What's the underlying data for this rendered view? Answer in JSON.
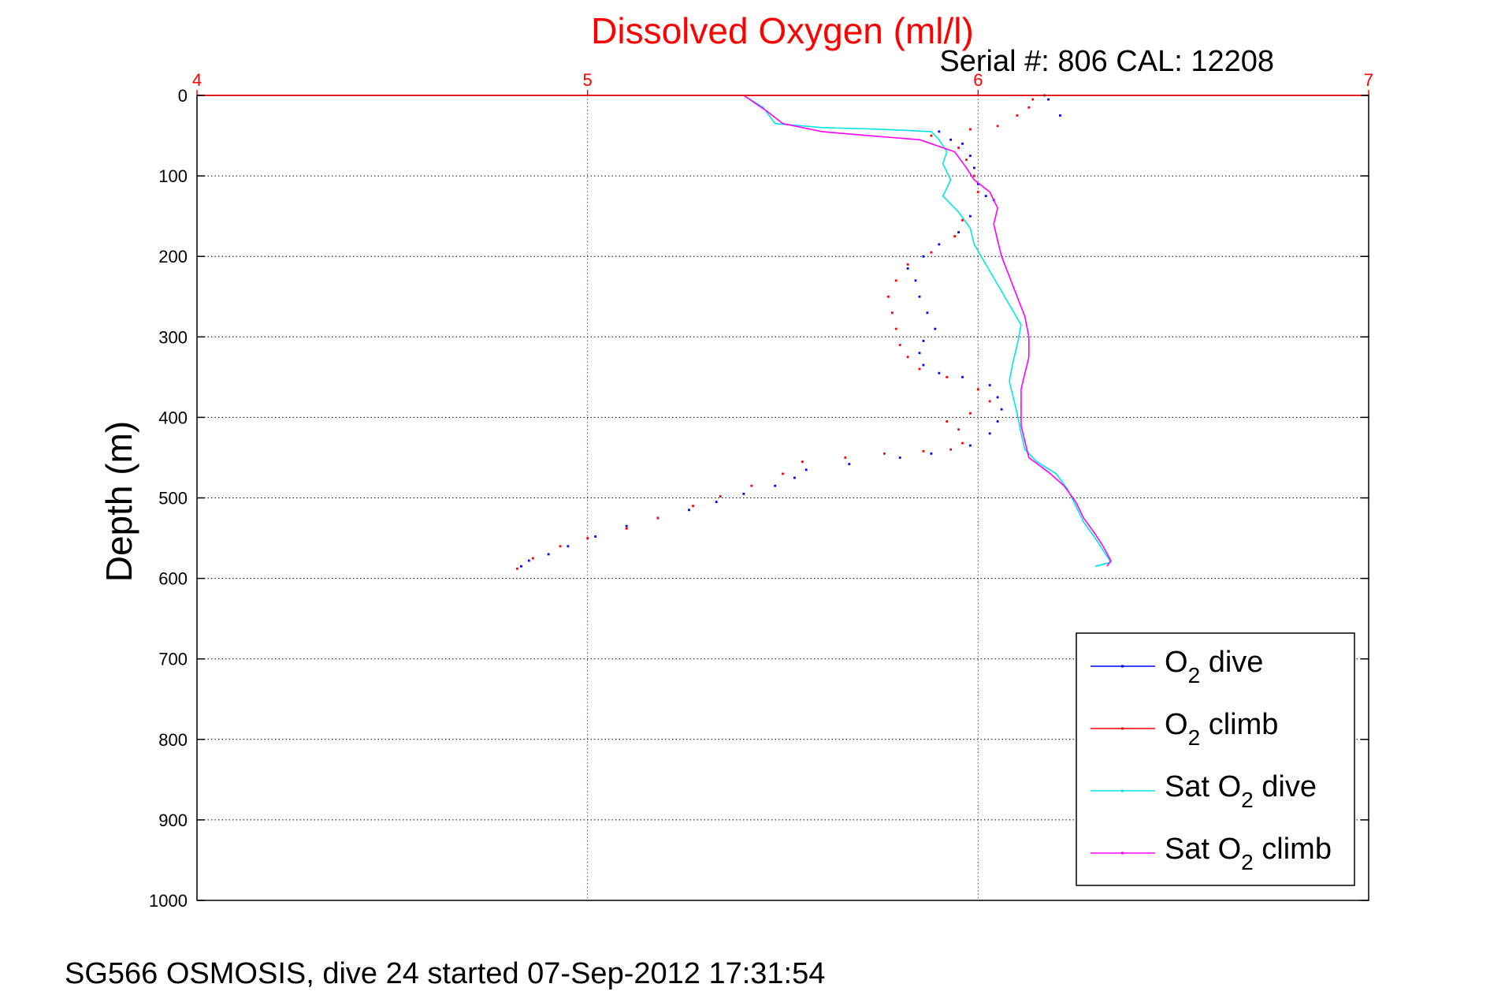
{
  "chart_data": {
    "type": "scatter",
    "title": "Dissolved Oxygen (ml/l)",
    "subtitle": "Serial #: 806  CAL: 12208",
    "ylabel": "Depth (m)",
    "xlabel": "",
    "xlim": [
      4,
      7
    ],
    "ylim": [
      0,
      1000
    ],
    "y_reversed": true,
    "x_axis_position": "top",
    "x_ticks": [
      4,
      5,
      6,
      7
    ],
    "y_ticks": [
      0,
      100,
      200,
      300,
      400,
      500,
      600,
      700,
      800,
      900,
      1000
    ],
    "grid": true,
    "legend_position": "bottom-right",
    "colors": {
      "title": "#ff0000",
      "x_axis": "#ff0000",
      "grid_x": "#ff0000",
      "grid_y": "#000000"
    },
    "series": [
      {
        "name": "O2 dive",
        "legend_label": {
          "main": "O",
          "sub": "2",
          "rest": " dive"
        },
        "color": "#0000ff",
        "style": "dots",
        "points": [
          [
            6.17,
            0
          ],
          [
            6.18,
            5
          ],
          [
            6.21,
            25
          ],
          [
            5.9,
            45
          ],
          [
            5.93,
            55
          ],
          [
            5.96,
            60
          ],
          [
            5.98,
            75
          ],
          [
            5.99,
            90
          ],
          [
            6.0,
            110
          ],
          [
            6.02,
            125
          ],
          [
            6.04,
            130
          ],
          [
            5.98,
            150
          ],
          [
            5.95,
            170
          ],
          [
            5.9,
            185
          ],
          [
            5.86,
            200
          ],
          [
            5.82,
            215
          ],
          [
            5.84,
            230
          ],
          [
            5.85,
            250
          ],
          [
            5.87,
            270
          ],
          [
            5.89,
            290
          ],
          [
            5.86,
            305
          ],
          [
            5.85,
            320
          ],
          [
            5.86,
            335
          ],
          [
            5.9,
            345
          ],
          [
            5.96,
            350
          ],
          [
            6.03,
            360
          ],
          [
            6.05,
            375
          ],
          [
            6.06,
            390
          ],
          [
            6.05,
            405
          ],
          [
            6.03,
            420
          ],
          [
            5.98,
            435
          ],
          [
            5.88,
            445
          ],
          [
            5.8,
            450
          ],
          [
            5.67,
            458
          ],
          [
            5.56,
            465
          ],
          [
            5.53,
            475
          ],
          [
            5.48,
            485
          ],
          [
            5.4,
            495
          ],
          [
            5.33,
            505
          ],
          [
            5.26,
            515
          ],
          [
            5.18,
            525
          ],
          [
            5.1,
            535
          ],
          [
            5.02,
            548
          ],
          [
            4.95,
            560
          ],
          [
            4.9,
            570
          ],
          [
            4.85,
            578
          ],
          [
            4.83,
            585
          ]
        ]
      },
      {
        "name": "O2 climb",
        "legend_label": {
          "main": "O",
          "sub": "2",
          "rest": " climb"
        },
        "color": "#ff0000",
        "style": "dots",
        "points": [
          [
            4.82,
            588
          ],
          [
            4.86,
            575
          ],
          [
            4.93,
            560
          ],
          [
            5.0,
            550
          ],
          [
            5.1,
            538
          ],
          [
            5.18,
            525
          ],
          [
            5.27,
            510
          ],
          [
            5.34,
            498
          ],
          [
            5.42,
            485
          ],
          [
            5.5,
            470
          ],
          [
            5.55,
            455
          ],
          [
            5.66,
            450
          ],
          [
            5.76,
            445
          ],
          [
            5.86,
            442
          ],
          [
            5.93,
            440
          ],
          [
            5.96,
            432
          ],
          [
            5.95,
            415
          ],
          [
            5.92,
            405
          ],
          [
            5.98,
            395
          ],
          [
            6.03,
            380
          ],
          [
            6.0,
            365
          ],
          [
            5.92,
            350
          ],
          [
            5.85,
            340
          ],
          [
            5.82,
            325
          ],
          [
            5.8,
            310
          ],
          [
            5.79,
            290
          ],
          [
            5.78,
            270
          ],
          [
            5.77,
            250
          ],
          [
            5.79,
            230
          ],
          [
            5.82,
            210
          ],
          [
            5.88,
            195
          ],
          [
            5.94,
            175
          ],
          [
            5.96,
            155
          ],
          [
            6.0,
            120
          ],
          [
            5.99,
            100
          ],
          [
            5.97,
            80
          ],
          [
            5.95,
            65
          ],
          [
            5.88,
            50
          ],
          [
            5.98,
            42
          ],
          [
            6.05,
            38
          ],
          [
            6.1,
            25
          ],
          [
            6.13,
            15
          ],
          [
            6.14,
            5
          ]
        ]
      },
      {
        "name": "Sat O2 dive",
        "legend_label": {
          "main": "Sat O",
          "sub": "2",
          "rest": " dive"
        },
        "color": "#00e5e5",
        "style": "line",
        "points": [
          [
            5.4,
            0
          ],
          [
            5.45,
            15
          ],
          [
            5.48,
            35
          ],
          [
            5.6,
            40
          ],
          [
            5.75,
            42
          ],
          [
            5.88,
            45
          ],
          [
            5.9,
            55
          ],
          [
            5.92,
            70
          ],
          [
            5.91,
            85
          ],
          [
            5.93,
            105
          ],
          [
            5.91,
            125
          ],
          [
            5.95,
            145
          ],
          [
            5.98,
            165
          ],
          [
            5.99,
            185
          ],
          [
            6.02,
            210
          ],
          [
            6.05,
            235
          ],
          [
            6.08,
            260
          ],
          [
            6.11,
            285
          ],
          [
            6.1,
            310
          ],
          [
            6.09,
            330
          ],
          [
            6.08,
            355
          ],
          [
            6.09,
            375
          ],
          [
            6.1,
            395
          ],
          [
            6.11,
            420
          ],
          [
            6.12,
            440
          ],
          [
            6.15,
            455
          ],
          [
            6.2,
            470
          ],
          [
            6.23,
            490
          ],
          [
            6.25,
            510
          ],
          [
            6.27,
            530
          ],
          [
            6.3,
            550
          ],
          [
            6.32,
            565
          ],
          [
            6.34,
            580
          ],
          [
            6.3,
            585
          ]
        ]
      },
      {
        "name": "Sat O2 climb",
        "legend_label": {
          "main": "Sat O",
          "sub": "2",
          "rest": " climb"
        },
        "color": "#ff00ff",
        "style": "line",
        "points": [
          [
            5.4,
            0
          ],
          [
            5.46,
            20
          ],
          [
            5.5,
            35
          ],
          [
            5.6,
            45
          ],
          [
            5.72,
            50
          ],
          [
            5.85,
            55
          ],
          [
            5.94,
            70
          ],
          [
            5.97,
            90
          ],
          [
            5.99,
            105
          ],
          [
            6.03,
            120
          ],
          [
            6.05,
            140
          ],
          [
            6.04,
            160
          ],
          [
            6.05,
            180
          ],
          [
            6.06,
            200
          ],
          [
            6.08,
            225
          ],
          [
            6.1,
            250
          ],
          [
            6.12,
            275
          ],
          [
            6.13,
            300
          ],
          [
            6.13,
            325
          ],
          [
            6.12,
            345
          ],
          [
            6.11,
            365
          ],
          [
            6.11,
            390
          ],
          [
            6.11,
            410
          ],
          [
            6.12,
            430
          ],
          [
            6.13,
            450
          ],
          [
            6.18,
            468
          ],
          [
            6.22,
            485
          ],
          [
            6.25,
            505
          ],
          [
            6.27,
            525
          ],
          [
            6.3,
            545
          ],
          [
            6.32,
            560
          ],
          [
            6.34,
            578
          ],
          [
            6.33,
            585
          ]
        ]
      }
    ]
  },
  "footer_text": "SG566 OSMOSIS, dive 24 started 07-Sep-2012 17:31:54"
}
